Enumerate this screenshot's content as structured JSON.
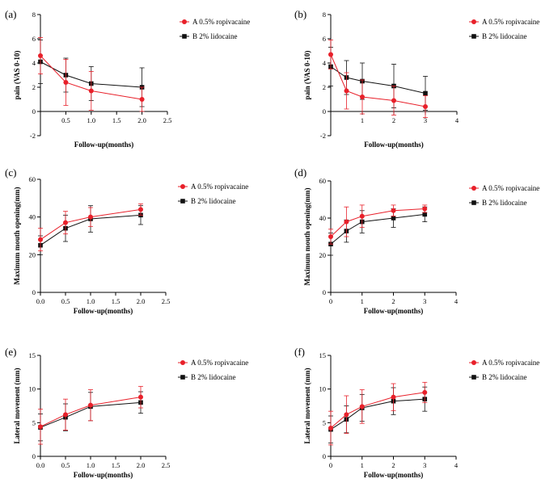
{
  "colors": {
    "series_a": "#e8202a",
    "series_b": "#111111",
    "axis": "#000000"
  },
  "legend": {
    "a": "A 0.5% ropivacaine",
    "b": "B 2% lidocaine"
  },
  "chart_data": [
    {
      "id": "a",
      "panel_label": "(a)",
      "type": "line",
      "xlabel": "Follow-up(months)",
      "ylabel": "pain (VAS 0-10)",
      "xlim": [
        0,
        2.5
      ],
      "ylim": [
        -2,
        8
      ],
      "xticks": [
        0.5,
        1.0,
        1.5,
        2.0,
        2.5
      ],
      "xtick_labels": [
        "0.5",
        "1.0",
        "1.5",
        "2.0",
        "2.5"
      ],
      "yticks": [
        -2,
        0,
        2,
        4,
        6,
        8
      ],
      "ytick_labels": [
        "-2",
        "0",
        "2",
        "4",
        "6",
        "8"
      ],
      "series": [
        {
          "name": "A 0.5% ropivacaine",
          "x": [
            0,
            0.5,
            1,
            2
          ],
          "y": [
            4.6,
            2.4,
            1.7,
            1.0
          ],
          "err": [
            1.5,
            1.9,
            1.6,
            1.0
          ]
        },
        {
          "name": "B 2% lidocaine",
          "x": [
            0,
            0.5,
            1,
            2
          ],
          "y": [
            4.1,
            3.0,
            2.3,
            2.0
          ],
          "err": [
            1.8,
            1.4,
            1.4,
            1.6
          ]
        }
      ]
    },
    {
      "id": "b",
      "panel_label": "(b)",
      "type": "line",
      "xlabel": "Follow-up(months)",
      "ylabel": "pain (VAS 0-10)",
      "xlim": [
        0,
        4
      ],
      "ylim": [
        -2,
        8
      ],
      "xticks": [
        1,
        2,
        3,
        4
      ],
      "xtick_labels": [
        "1",
        "2",
        "3",
        "4"
      ],
      "yticks": [
        -2,
        0,
        2,
        4,
        6,
        8
      ],
      "ytick_labels": [
        "-2",
        "0",
        "2",
        "4",
        "6",
        "8"
      ],
      "series": [
        {
          "name": "A 0.5% ropivacaine",
          "x": [
            0,
            0.5,
            1,
            2,
            3
          ],
          "y": [
            4.7,
            1.7,
            1.2,
            0.9,
            0.4
          ],
          "err": [
            1.2,
            1.5,
            1.4,
            1.2,
            0.9
          ]
        },
        {
          "name": "B 2% lidocaine",
          "x": [
            0,
            0.5,
            1,
            2,
            3
          ],
          "y": [
            3.7,
            2.8,
            2.5,
            2.1,
            1.5
          ],
          "err": [
            1.6,
            1.4,
            1.5,
            1.8,
            1.4
          ]
        }
      ]
    },
    {
      "id": "c",
      "panel_label": "(c)",
      "type": "line",
      "xlabel": "Follow-up(months)",
      "ylabel": "Maximum mouth opening(mm)",
      "xlim": [
        0,
        2.5
      ],
      "ylim": [
        0,
        60
      ],
      "xticks": [
        0,
        0.5,
        1.0,
        1.5,
        2.0,
        2.5
      ],
      "xtick_labels": [
        "0.0",
        "0.5",
        "1.0",
        "1.5",
        "2.0",
        "2.5"
      ],
      "yticks": [
        0,
        20,
        40,
        60
      ],
      "ytick_labels": [
        "0",
        "20",
        "40",
        "60"
      ],
      "series": [
        {
          "name": "A 0.5% ropivacaine",
          "x": [
            0,
            0.5,
            1,
            2
          ],
          "y": [
            28,
            37,
            40,
            44
          ],
          "err": [
            6,
            6,
            5,
            3
          ]
        },
        {
          "name": "B 2% lidocaine",
          "x": [
            0,
            0.5,
            1,
            2
          ],
          "y": [
            25,
            34,
            39,
            41
          ],
          "err": [
            5,
            7,
            7,
            5
          ]
        }
      ]
    },
    {
      "id": "d",
      "panel_label": "(d)",
      "type": "line",
      "xlabel": "Follow-up(months)",
      "ylabel": "Maximum mouth opening(mm)",
      "xlim": [
        0,
        4
      ],
      "ylim": [
        0,
        60
      ],
      "xticks": [
        0,
        1,
        2,
        3,
        4
      ],
      "xtick_labels": [
        "0",
        "1",
        "2",
        "3",
        "4"
      ],
      "yticks": [
        0,
        20,
        40,
        60
      ],
      "ytick_labels": [
        "0",
        "20",
        "40",
        "60"
      ],
      "series": [
        {
          "name": "A 0.5% ropivacaine",
          "x": [
            0,
            0.5,
            1,
            2,
            3
          ],
          "y": [
            30,
            38,
            41,
            44,
            45
          ],
          "err": [
            4,
            8,
            6,
            3,
            2
          ]
        },
        {
          "name": "B 2% lidocaine",
          "x": [
            0,
            0.5,
            1,
            2,
            3
          ],
          "y": [
            26,
            33,
            38,
            40,
            42
          ],
          "err": [
            6,
            6,
            6,
            5,
            4
          ]
        }
      ]
    },
    {
      "id": "e",
      "panel_label": "(e)",
      "type": "line",
      "xlabel": "Follow-up(months)",
      "ylabel": "Lateral movement (mm)",
      "xlim": [
        0,
        2.5
      ],
      "ylim": [
        0,
        15
      ],
      "xticks": [
        0,
        0.5,
        1.0,
        1.5,
        2.0,
        2.5
      ],
      "xtick_labels": [
        "0.0",
        "0.5",
        "1.0",
        "1.5",
        "2.0",
        "2.5"
      ],
      "yticks": [
        0,
        5,
        10,
        15
      ],
      "ytick_labels": [
        "0",
        "5",
        "10",
        "15"
      ],
      "series": [
        {
          "name": "A 0.5% ropivacaine",
          "x": [
            0,
            0.5,
            1,
            2
          ],
          "y": [
            4.4,
            6.2,
            7.6,
            8.8
          ],
          "err": [
            2.6,
            2.3,
            2.3,
            1.6
          ]
        },
        {
          "name": "B 2% lidocaine",
          "x": [
            0,
            0.5,
            1,
            2
          ],
          "y": [
            4.3,
            5.8,
            7.4,
            8.0
          ],
          "err": [
            2.0,
            2.0,
            2.1,
            1.6
          ]
        }
      ]
    },
    {
      "id": "f",
      "panel_label": "(f)",
      "type": "line",
      "xlabel": "Follow-up(months)",
      "ylabel": "Lateral movement (mm)",
      "xlim": [
        0,
        4
      ],
      "ylim": [
        0,
        15
      ],
      "xticks": [
        0,
        1,
        2,
        3,
        4
      ],
      "xtick_labels": [
        "0",
        "1",
        "2",
        "3",
        "4"
      ],
      "yticks": [
        0,
        5,
        10,
        15
      ],
      "ytick_labels": [
        "0",
        "5",
        "10",
        "15"
      ],
      "series": [
        {
          "name": "A 0.5% ropivacaine",
          "x": [
            0,
            0.5,
            1,
            2,
            3
          ],
          "y": [
            4.2,
            6.2,
            7.4,
            8.8,
            9.5
          ],
          "err": [
            2.5,
            2.8,
            2.5,
            2.0,
            1.5
          ]
        },
        {
          "name": "B 2% lidocaine",
          "x": [
            0,
            0.5,
            1,
            2,
            3
          ],
          "y": [
            4.0,
            5.5,
            7.2,
            8.2,
            8.5
          ],
          "err": [
            2.0,
            2.0,
            2.0,
            2.0,
            1.8
          ]
        }
      ]
    }
  ]
}
